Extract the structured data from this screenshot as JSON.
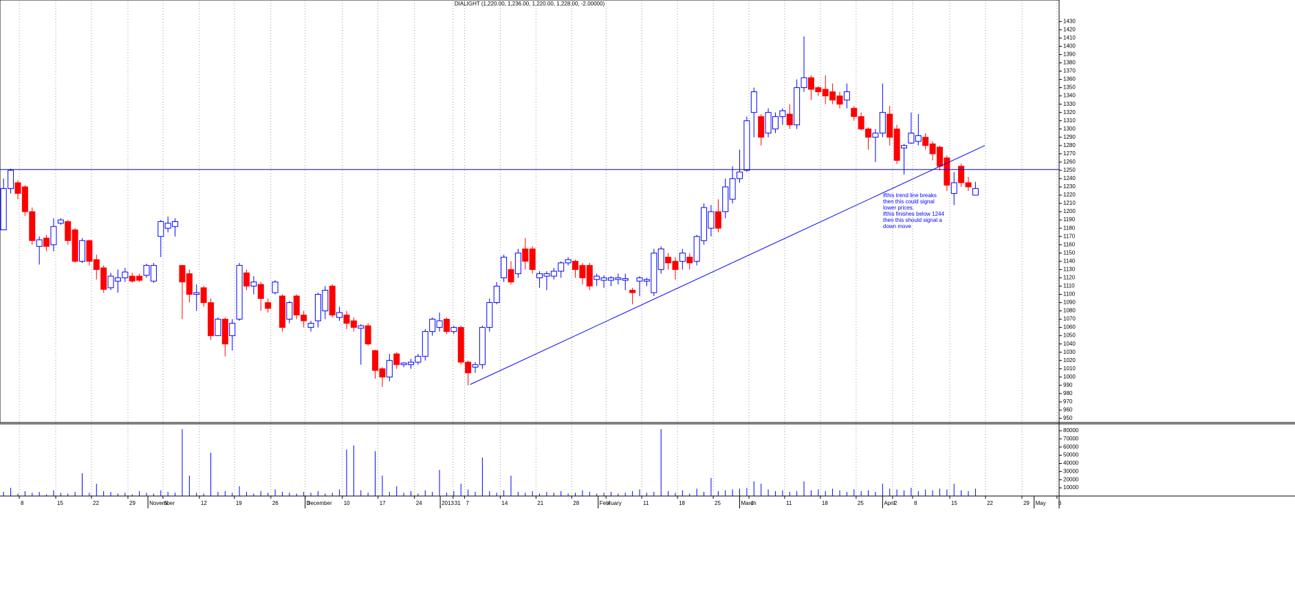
{
  "chart_data": {
    "type": "candlestick",
    "title": "DIALIGHT (1,220.00, 1,236.00, 1,220.00, 1,228.00, -2.00000)",
    "xlim": [
      -0.5,
      147.7
    ],
    "xticks": [
      {
        "value": 2.2,
        "label": "8"
      },
      {
        "value": 7.3,
        "label": "15"
      },
      {
        "value": 12.3,
        "label": "22"
      },
      {
        "value": 17.4,
        "label": "29"
      },
      {
        "value": 22.3,
        "label": "5"
      },
      {
        "value": 27.4,
        "label": "12"
      },
      {
        "value": 32.3,
        "label": "19"
      },
      {
        "value": 37.4,
        "label": "26"
      },
      {
        "value": 42.2,
        "label": "3"
      },
      {
        "value": 47.4,
        "label": "10"
      },
      {
        "value": 52.4,
        "label": "17"
      },
      {
        "value": 57.5,
        "label": "24"
      },
      {
        "value": 62.9,
        "label": "31"
      },
      {
        "value": 64.5,
        "label": "7"
      },
      {
        "value": 69.5,
        "label": "14"
      },
      {
        "value": 74.5,
        "label": "21"
      },
      {
        "value": 79.5,
        "label": "28"
      },
      {
        "value": 84.3,
        "label": "4"
      },
      {
        "value": 89.3,
        "label": "11"
      },
      {
        "value": 94.3,
        "label": "18"
      },
      {
        "value": 99.3,
        "label": "25"
      },
      {
        "value": 104.3,
        "label": "4"
      },
      {
        "value": 109.3,
        "label": "11"
      },
      {
        "value": 114.3,
        "label": "18"
      },
      {
        "value": 119.3,
        "label": "25"
      },
      {
        "value": 124.4,
        "label": "2"
      },
      {
        "value": 127.2,
        "label": "8"
      },
      {
        "value": 132.4,
        "label": "15"
      },
      {
        "value": 137.4,
        "label": "22"
      },
      {
        "value": 142.5,
        "label": "29"
      },
      {
        "value": 147.4,
        "label": "6"
      }
    ],
    "month_labels": [
      {
        "value": 20.2,
        "label": "November"
      },
      {
        "value": 42.2,
        "label": "December"
      },
      {
        "value": 61.1,
        "label": "2013"
      },
      {
        "value": 83.2,
        "label": "February"
      },
      {
        "value": 103,
        "label": "March"
      },
      {
        "value": 123,
        "label": "April"
      },
      {
        "value": 144.2,
        "label": "May"
      }
    ],
    "ylim": [
      945,
      1456
    ],
    "yticks": [
      950,
      960,
      970,
      980,
      990,
      1000,
      1010,
      1020,
      1030,
      1040,
      1050,
      1060,
      1070,
      1080,
      1090,
      1100,
      1110,
      1120,
      1130,
      1140,
      1150,
      1160,
      1170,
      1180,
      1190,
      1200,
      1210,
      1220,
      1230,
      1240,
      1250,
      1260,
      1270,
      1280,
      1290,
      1300,
      1310,
      1320,
      1330,
      1340,
      1350,
      1360,
      1370,
      1380,
      1390,
      1400,
      1410,
      1420,
      1430
    ],
    "grid": true,
    "up_fill": "#ffffff",
    "up_stroke": "#0000ff",
    "down_fill": "#ff0000",
    "line_color": "#0000ff",
    "open": [
      1178,
      1228,
      1235,
      1230,
      1200,
      1158,
      1168,
      1160,
      1186,
      1188,
      1178,
      1140,
      1165,
      1142,
      1132,
      1108,
      1116,
      1120,
      1122,
      1122,
      1123,
      1116,
      1170,
      1180,
      1182,
      1135,
      1125,
      1100,
      1108,
      1090,
      1050,
      1070,
      1050,
      1070,
      1126,
      1110,
      1112,
      1090,
      1102,
      1098,
      1070,
      1098,
      1075,
      1060,
      1068,
      1080,
      1110,
      1072,
      1075,
      1068,
      1059,
      1062,
      1032,
      1010,
      1000,
      1028,
      1015,
      1015,
      1018,
      1025,
      1055,
      1060,
      1070,
      1055,
      1060,
      1018,
      1012,
      1015,
      1060,
      1090,
      1120,
      1130,
      1125,
      1155,
      1155,
      1120,
      1122,
      1122,
      1128,
      1138,
      1140,
      1135,
      1135,
      1118,
      1117,
      1117,
      1118,
      1117,
      1105,
      1116,
      1116,
      1102,
      1130,
      1145,
      1140,
      1140,
      1145,
      1140,
      1165,
      1180,
      1200,
      1200,
      1215,
      1240,
      1250,
      1320,
      1315,
      1295,
      1300,
      1315,
      1318,
      1305,
      1350,
      1362,
      1350,
      1348,
      1345,
      1340,
      1335,
      1325,
      1315,
      1300,
      1290,
      1295,
      1318,
      1300,
      1277,
      1283,
      1285,
      1290,
      1282,
      1278,
      1265,
      1222,
      1255,
      1235,
      1220
    ],
    "high": [
      1240,
      1252,
      1238,
      1232,
      1205,
      1170,
      1172,
      1192,
      1192,
      1190,
      1180,
      1168,
      1166,
      1148,
      1135,
      1126,
      1130,
      1132,
      1126,
      1125,
      1137,
      1138,
      1190,
      1194,
      1192,
      1135,
      1130,
      1112,
      1110,
      1095,
      1072,
      1072,
      1070,
      1138,
      1130,
      1122,
      1115,
      1095,
      1117,
      1100,
      1092,
      1100,
      1080,
      1068,
      1102,
      1110,
      1112,
      1085,
      1080,
      1072,
      1064,
      1065,
      1033,
      1012,
      1028,
      1030,
      1018,
      1022,
      1028,
      1058,
      1072,
      1078,
      1072,
      1062,
      1062,
      1020,
      1018,
      1062,
      1095,
      1115,
      1148,
      1140,
      1155,
      1168,
      1158,
      1128,
      1128,
      1132,
      1140,
      1145,
      1142,
      1138,
      1138,
      1125,
      1123,
      1122,
      1125,
      1125,
      1108,
      1122,
      1120,
      1155,
      1158,
      1150,
      1145,
      1155,
      1150,
      1172,
      1210,
      1208,
      1215,
      1240,
      1255,
      1275,
      1315,
      1350,
      1318,
      1325,
      1320,
      1325,
      1330,
      1360,
      1412,
      1365,
      1352,
      1365,
      1355,
      1345,
      1355,
      1328,
      1320,
      1302,
      1300,
      1355,
      1328,
      1305,
      1282,
      1320,
      1318,
      1295,
      1285,
      1280,
      1268,
      1248,
      1258,
      1242,
      1236
    ],
    "low": [
      1178,
      1222,
      1215,
      1195,
      1160,
      1136,
      1152,
      1152,
      1184,
      1160,
      1138,
      1138,
      1135,
      1118,
      1102,
      1105,
      1102,
      1115,
      1114,
      1115,
      1120,
      1114,
      1145,
      1175,
      1170,
      1070,
      1090,
      1080,
      1085,
      1045,
      1050,
      1025,
      1032,
      1068,
      1105,
      1100,
      1080,
      1078,
      1100,
      1055,
      1065,
      1070,
      1060,
      1055,
      1060,
      1070,
      1072,
      1068,
      1058,
      1055,
      1015,
      1038,
      998,
      988,
      995,
      1010,
      1012,
      1010,
      1015,
      1020,
      1050,
      1055,
      1052,
      1052,
      1015,
      990,
      1005,
      1010,
      1055,
      1088,
      1115,
      1112,
      1120,
      1130,
      1125,
      1108,
      1105,
      1118,
      1120,
      1135,
      1120,
      1112,
      1105,
      1110,
      1108,
      1110,
      1112,
      1105,
      1088,
      1098,
      1110,
      1098,
      1125,
      1130,
      1118,
      1130,
      1130,
      1135,
      1160,
      1170,
      1175,
      1192,
      1210,
      1235,
      1248,
      1290,
      1280,
      1290,
      1295,
      1305,
      1300,
      1300,
      1345,
      1335,
      1340,
      1330,
      1330,
      1325,
      1325,
      1310,
      1298,
      1275,
      1260,
      1290,
      1280,
      1258,
      1245,
      1282,
      1280,
      1275,
      1262,
      1250,
      1225,
      1208,
      1230,
      1225,
      1220
    ],
    "close": [
      1228,
      1250,
      1222,
      1200,
      1165,
      1166,
      1158,
      1182,
      1190,
      1165,
      1140,
      1165,
      1140,
      1130,
      1106,
      1122,
      1120,
      1127,
      1116,
      1117,
      1135,
      1135,
      1188,
      1186,
      1188,
      1115,
      1100,
      1102,
      1090,
      1050,
      1070,
      1040,
      1065,
      1135,
      1110,
      1115,
      1095,
      1083,
      1115,
      1060,
      1090,
      1075,
      1068,
      1065,
      1100,
      1105,
      1075,
      1078,
      1065,
      1060,
      1062,
      1040,
      1008,
      1000,
      1020,
      1015,
      1017,
      1018,
      1025,
      1055,
      1070,
      1068,
      1055,
      1060,
      1018,
      1005,
      1015,
      1060,
      1090,
      1110,
      1145,
      1115,
      1150,
      1140,
      1130,
      1125,
      1125,
      1128,
      1138,
      1142,
      1130,
      1120,
      1110,
      1122,
      1120,
      1120,
      1120,
      1119,
      1102,
      1120,
      1118,
      1150,
      1155,
      1138,
      1130,
      1150,
      1138,
      1170,
      1205,
      1200,
      1180,
      1230,
      1240,
      1248,
      1310,
      1345,
      1290,
      1320,
      1315,
      1322,
      1305,
      1350,
      1362,
      1348,
      1345,
      1340,
      1335,
      1330,
      1345,
      1315,
      1300,
      1290,
      1295,
      1320,
      1290,
      1262,
      1280,
      1295,
      1292,
      1280,
      1270,
      1255,
      1232,
      1235,
      1235,
      1230,
      1228
    ],
    "horizontal_line": 1251,
    "trend_line": {
      "x": [
        65.3,
        137.3
      ],
      "y": [
        991,
        1280
      ]
    },
    "annotation": [
      "ifthis trend line breaks",
      "then this could signal",
      "lower prices.",
      "ifthis finishes below 1244",
      "then this should signal a",
      "down move"
    ],
    "volume": {
      "color": "#0000ff",
      "ylim": [
        0,
        88400
      ],
      "yticks": [
        10000,
        20000,
        30000,
        40000,
        50000,
        60000,
        70000,
        80000
      ],
      "values": [
        5000,
        10000,
        3000,
        6000,
        4000,
        5000,
        2000,
        7000,
        4000,
        3000,
        5000,
        28000,
        4000,
        15000,
        6000,
        5000,
        3000,
        4000,
        2000,
        6000,
        4000,
        3000,
        7000,
        5000,
        4000,
        82000,
        25000,
        4000,
        3000,
        53000,
        5000,
        6000,
        4000,
        12000,
        5000,
        3000,
        6000,
        4000,
        8000,
        5000,
        4000,
        3000,
        5000,
        4000,
        6000,
        3000,
        4000,
        8000,
        57000,
        62000,
        7000,
        4000,
        55000,
        25000,
        5000,
        12000,
        4000,
        6000,
        3000,
        7000,
        5000,
        32000,
        4000,
        6000,
        15000,
        8000,
        5000,
        47000,
        6000,
        4000,
        7000,
        25000,
        5000,
        4000,
        6000,
        3000,
        5000,
        4000,
        6000,
        3000,
        4000,
        7000,
        5000,
        3000,
        4000,
        5000,
        3000,
        4000,
        6000,
        8000,
        4000,
        5000,
        82000,
        6000,
        4000,
        7000,
        3000,
        9000,
        5000,
        22000,
        6000,
        7000,
        8000,
        9000,
        10000,
        18000,
        15000,
        8000,
        6000,
        7000,
        5000,
        6000,
        18000,
        7000,
        8000,
        6000,
        9000,
        7000,
        5000,
        8000,
        6000,
        7000,
        5000,
        15000,
        9000,
        8000,
        7000,
        10000,
        6000,
        8000,
        7000,
        9000,
        8000,
        15000,
        7000,
        6000,
        9000
      ]
    }
  }
}
